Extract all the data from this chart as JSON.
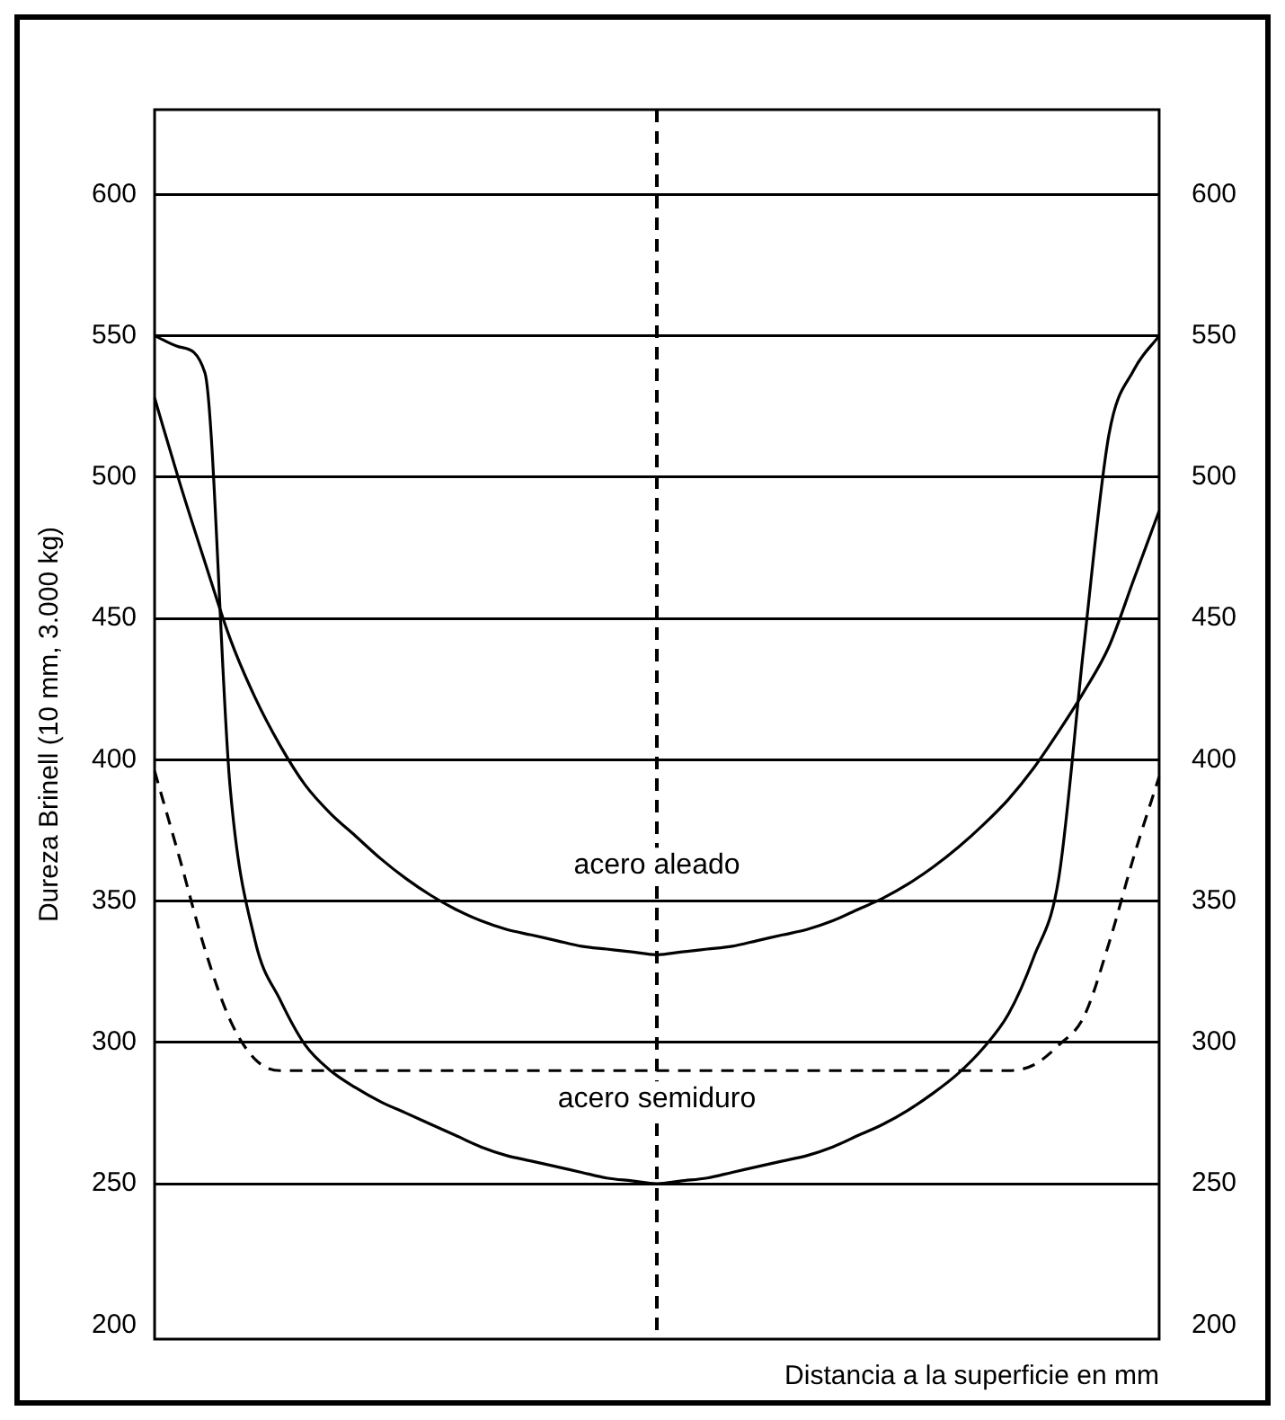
{
  "chart_data": {
    "type": "line",
    "xlabel": "Distancia a la superficie en mm",
    "ylabel": "Dureza Brinell (10 mm, 3.000 kg)",
    "categories": [
      null,
      null,
      null,
      null,
      null,
      null,
      null,
      null,
      null,
      null,
      null,
      null,
      null,
      null,
      null,
      null,
      null,
      null,
      null,
      null,
      null,
      null,
      null,
      null,
      null,
      null,
      null,
      null,
      null,
      null,
      null,
      null,
      null,
      null,
      null,
      null,
      null,
      null,
      null,
      null,
      null
    ],
    "series": [
      {
        "color": "#000000",
        "values": [
          528,
          498,
          470,
          443,
          422,
          405,
          391,
          381,
          373,
          365,
          358,
          352,
          347,
          343,
          340,
          338,
          336,
          334,
          333,
          332,
          331,
          332,
          333,
          334,
          336,
          338,
          340,
          343,
          347,
          351,
          356,
          362,
          369,
          377,
          386,
          397,
          410,
          424,
          440,
          464,
          488
        ]
      },
      {
        "color": "#000000",
        "values": [
          550,
          546,
          537,
          391,
          336,
          315,
          299,
          290,
          284,
          279,
          275,
          271,
          267,
          263,
          260,
          258,
          256,
          254,
          252,
          251,
          250,
          251,
          252,
          254,
          256,
          258,
          260,
          263,
          267,
          271,
          276,
          282,
          289,
          298,
          310,
          330,
          358,
          440,
          515,
          538,
          550
        ]
      },
      {
        "color": "#000000",
        "line_style": "dashed",
        "values": [
          396,
          365,
          333,
          308,
          294,
          290,
          290,
          290,
          290,
          290,
          290,
          290,
          290,
          290,
          290,
          290,
          290,
          290,
          290,
          290,
          290,
          290,
          290,
          290,
          290,
          290,
          290,
          290,
          290,
          290,
          290,
          290,
          290,
          290,
          290,
          292,
          299,
          309,
          335,
          366,
          394
        ]
      }
    ],
    "ylim": [
      195,
      630
    ],
    "yticks": [
      200,
      250,
      300,
      350,
      400,
      450,
      500,
      550,
      600
    ],
    "y2lim": [
      195,
      630
    ],
    "y2ticks": [
      200,
      250,
      300,
      350,
      400,
      450,
      500,
      550,
      600
    ],
    "grid": "y",
    "legend": false,
    "marker": "none",
    "annotations": [
      "acero aleado",
      "acero semiduro"
    ]
  }
}
